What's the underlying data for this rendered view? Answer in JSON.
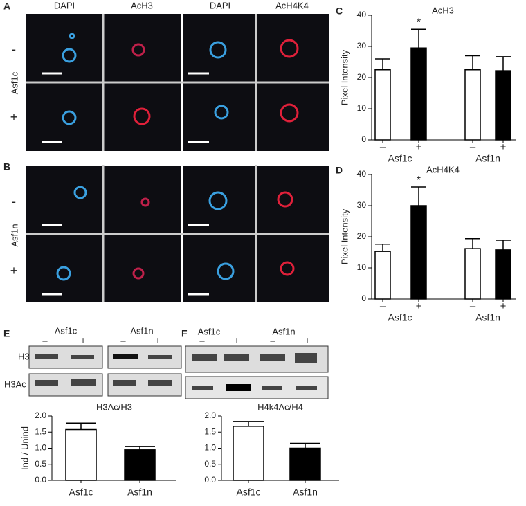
{
  "panel_letters": [
    "A",
    "B",
    "C",
    "D",
    "E",
    "F"
  ],
  "microscopy": {
    "columns": [
      "DAPI",
      "AcH3",
      "DAPI",
      "AcH4K4"
    ],
    "rows_A": {
      "gene": "Asf1c",
      "conditions": [
        "-",
        "+"
      ]
    },
    "rows_B": {
      "gene": "Asf1n",
      "conditions": [
        "-",
        "+"
      ]
    }
  },
  "blots": {
    "E": {
      "groups": [
        "Asf1c",
        "Asf1n"
      ],
      "lanes": [
        "–",
        "+",
        "–",
        "+"
      ],
      "rows": [
        "H3",
        "H3Ac"
      ]
    },
    "F": {
      "groups": [
        "Asf1c",
        "Asf1n"
      ],
      "lanes": [
        "–",
        "+",
        "–",
        "+"
      ]
    }
  },
  "chart_data": [
    {
      "type": "bar",
      "title": "AcH3",
      "y_label": "Pixel Intensity",
      "categories": [
        "–",
        "+",
        "–",
        "+"
      ],
      "groups": [
        "Asf1c",
        "Asf1n"
      ],
      "values": [
        22.5,
        29.5,
        22.5,
        22.2
      ],
      "errors": [
        3.5,
        6,
        4.5,
        4.5
      ],
      "significance": [
        null,
        "*",
        null,
        null
      ],
      "colors": [
        "#ffffff",
        "#000000",
        "#ffffff",
        "#000000"
      ],
      "ylim": [
        0,
        40
      ],
      "yticks": [
        0,
        10,
        20,
        30,
        40
      ]
    },
    {
      "type": "bar",
      "title": "AcH4K4",
      "y_label": "Pixel Intensity",
      "categories": [
        "–",
        "+",
        "–",
        "+"
      ],
      "groups": [
        "Asf1c",
        "Asf1n"
      ],
      "values": [
        15.3,
        30,
        16.2,
        15.8
      ],
      "errors": [
        2.3,
        6,
        3.2,
        3.1
      ],
      "significance": [
        null,
        "*",
        null,
        null
      ],
      "colors": [
        "#ffffff",
        "#000000",
        "#ffffff",
        "#000000"
      ],
      "ylim": [
        0,
        40
      ],
      "yticks": [
        0,
        10,
        20,
        30,
        40
      ]
    },
    {
      "type": "bar",
      "title": "H3Ac/H3",
      "y_label": "Ind / Unind",
      "categories": [
        "Asf1c",
        "Asf1n"
      ],
      "values": [
        1.58,
        0.95
      ],
      "errors": [
        0.2,
        0.1
      ],
      "colors": [
        "#ffffff",
        "#000000"
      ],
      "ylim": [
        0,
        2
      ],
      "yticks": [
        {
          "value": 0,
          "label": "0.0"
        },
        {
          "value": 0.5,
          "label": "0.5"
        },
        {
          "value": 1,
          "label": "1.0"
        },
        {
          "value": 1.5,
          "label": "1.5"
        },
        {
          "value": 2,
          "label": "2.0"
        }
      ]
    },
    {
      "type": "bar",
      "title": "H4k4Ac/H4",
      "categories": [
        "Asf1c",
        "Asf1n"
      ],
      "values": [
        1.68,
        1.0
      ],
      "errors": [
        0.15,
        0.15
      ],
      "colors": [
        "#ffffff",
        "#000000"
      ],
      "ylim": [
        0,
        2
      ],
      "yticks": [
        {
          "value": 0,
          "label": "0.0"
        },
        {
          "value": 0.5,
          "label": "0.5"
        },
        {
          "value": 1,
          "label": "1.0"
        },
        {
          "value": 1.5,
          "label": "1.5"
        },
        {
          "value": 2,
          "label": "2.0"
        }
      ]
    }
  ]
}
